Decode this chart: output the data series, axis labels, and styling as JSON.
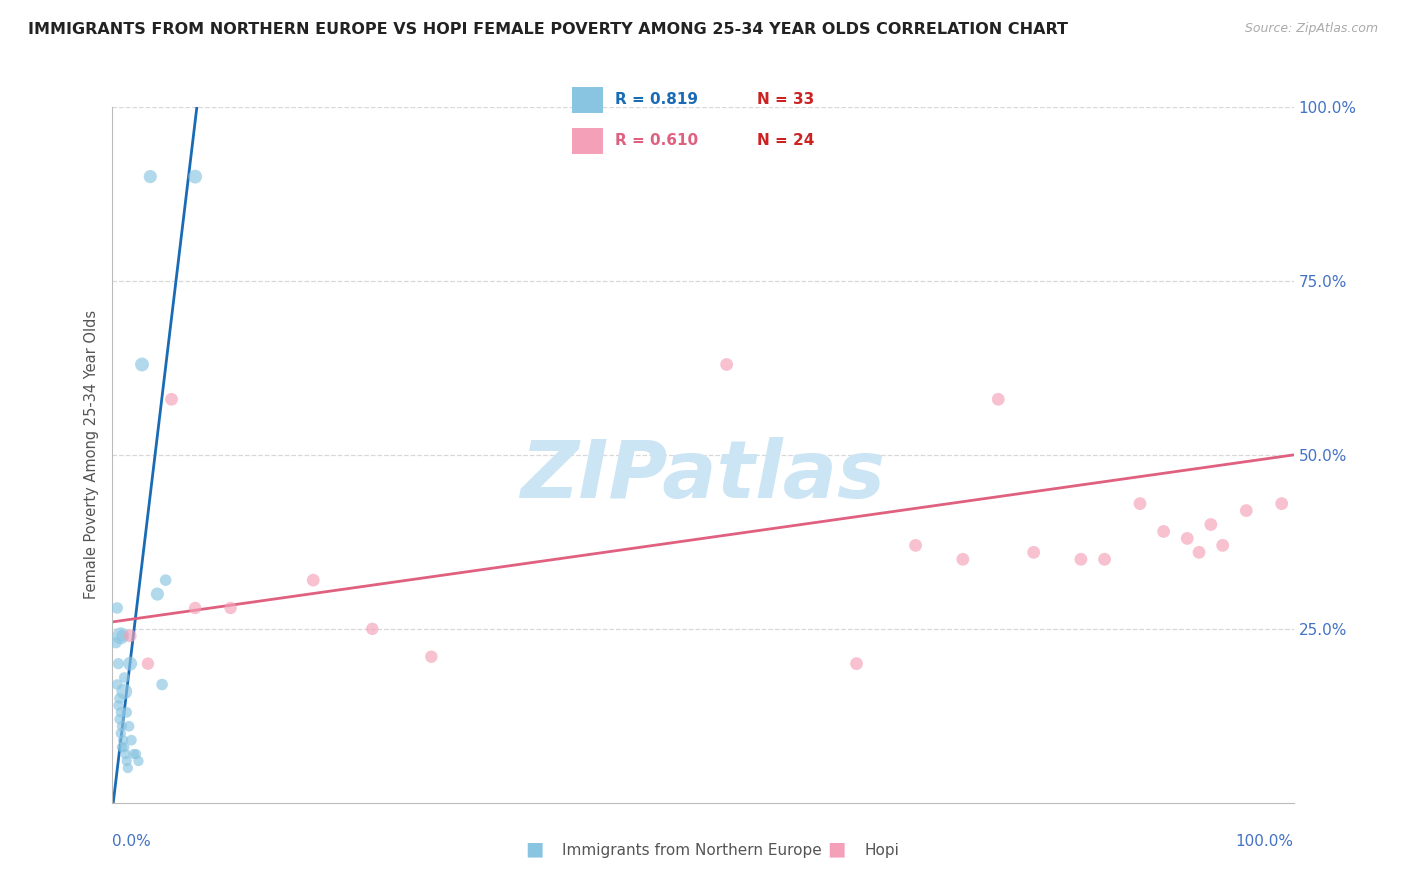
{
  "title": "IMMIGRANTS FROM NORTHERN EUROPE VS HOPI FEMALE POVERTY AMONG 25-34 YEAR OLDS CORRELATION CHART",
  "source": "Source: ZipAtlas.com",
  "ylabel": "Female Poverty Among 25-34 Year Olds",
  "legend_blue_r": "R = 0.819",
  "legend_blue_n": "N = 33",
  "legend_pink_r": "R = 0.610",
  "legend_pink_n": "N = 24",
  "legend_blue_label": "Immigrants from Northern Europe",
  "legend_pink_label": "Hopi",
  "blue_color": "#89c4e1",
  "pink_color": "#f4a0b8",
  "blue_line_color": "#1a6bb5",
  "pink_line_color": "#e06080",
  "blue_r_color": "#1a6bb5",
  "pink_r_color": "#e06080",
  "n_color": "#cc2222",
  "right_axis_color": "#4472c4",
  "watermark_color": "#cce5f5",
  "blue_scatter_x": [
    2.5,
    3.2,
    3.8,
    4.2,
    4.5,
    0.8,
    1.0,
    1.2,
    1.4,
    1.6,
    1.8,
    2.0,
    2.2,
    0.4,
    0.5,
    0.6,
    0.7,
    0.8,
    0.9,
    1.0,
    1.1,
    1.2,
    1.3,
    0.3,
    0.4,
    0.5,
    0.6,
    0.7,
    0.8,
    0.7,
    1.0,
    1.5,
    7.0
  ],
  "blue_scatter_y": [
    63,
    90,
    30,
    17,
    32,
    24,
    18,
    13,
    11,
    9,
    7,
    7,
    6,
    28,
    20,
    15,
    13,
    11,
    9,
    8,
    7,
    6,
    5,
    23,
    17,
    14,
    12,
    10,
    8,
    24,
    16,
    20,
    90
  ],
  "blue_scatter_sizes": [
    100,
    90,
    90,
    70,
    70,
    70,
    60,
    60,
    60,
    60,
    55,
    55,
    55,
    70,
    65,
    60,
    55,
    55,
    55,
    55,
    55,
    55,
    55,
    65,
    60,
    55,
    55,
    55,
    55,
    150,
    130,
    100,
    100
  ],
  "pink_scatter_x": [
    1.5,
    3.0,
    5.0,
    7.0,
    10.0,
    17.0,
    22.0,
    27.0,
    52.0,
    63.0,
    68.0,
    72.0,
    75.0,
    78.0,
    82.0,
    84.0,
    87.0,
    89.0,
    91.0,
    92.0,
    93.0,
    94.0,
    96.0,
    99.0
  ],
  "pink_scatter_y": [
    24,
    20,
    58,
    28,
    28,
    32,
    25,
    21,
    63,
    20,
    37,
    35,
    58,
    36,
    35,
    35,
    43,
    39,
    38,
    36,
    40,
    37,
    42,
    43
  ],
  "pink_scatter_sizes": [
    85,
    80,
    85,
    80,
    80,
    85,
    80,
    80,
    85,
    85,
    85,
    85,
    85,
    85,
    85,
    85,
    85,
    85,
    85,
    85,
    85,
    85,
    85,
    85
  ],
  "blue_line_x": [
    -1.0,
    7.5
  ],
  "blue_line_y": [
    -15.0,
    105.0
  ],
  "pink_line_x": [
    0.0,
    100.0
  ],
  "pink_line_y": [
    26.0,
    50.0
  ],
  "xlim": [
    0,
    100
  ],
  "ylim": [
    0,
    100
  ],
  "yticks": [
    0,
    25,
    50,
    75,
    100
  ],
  "right_ytick_labels": [
    "",
    "25.0%",
    "50.0%",
    "75.0%",
    "100.0%"
  ],
  "grid_color": "#d8d8d8",
  "spine_color": "#bbbbbb"
}
